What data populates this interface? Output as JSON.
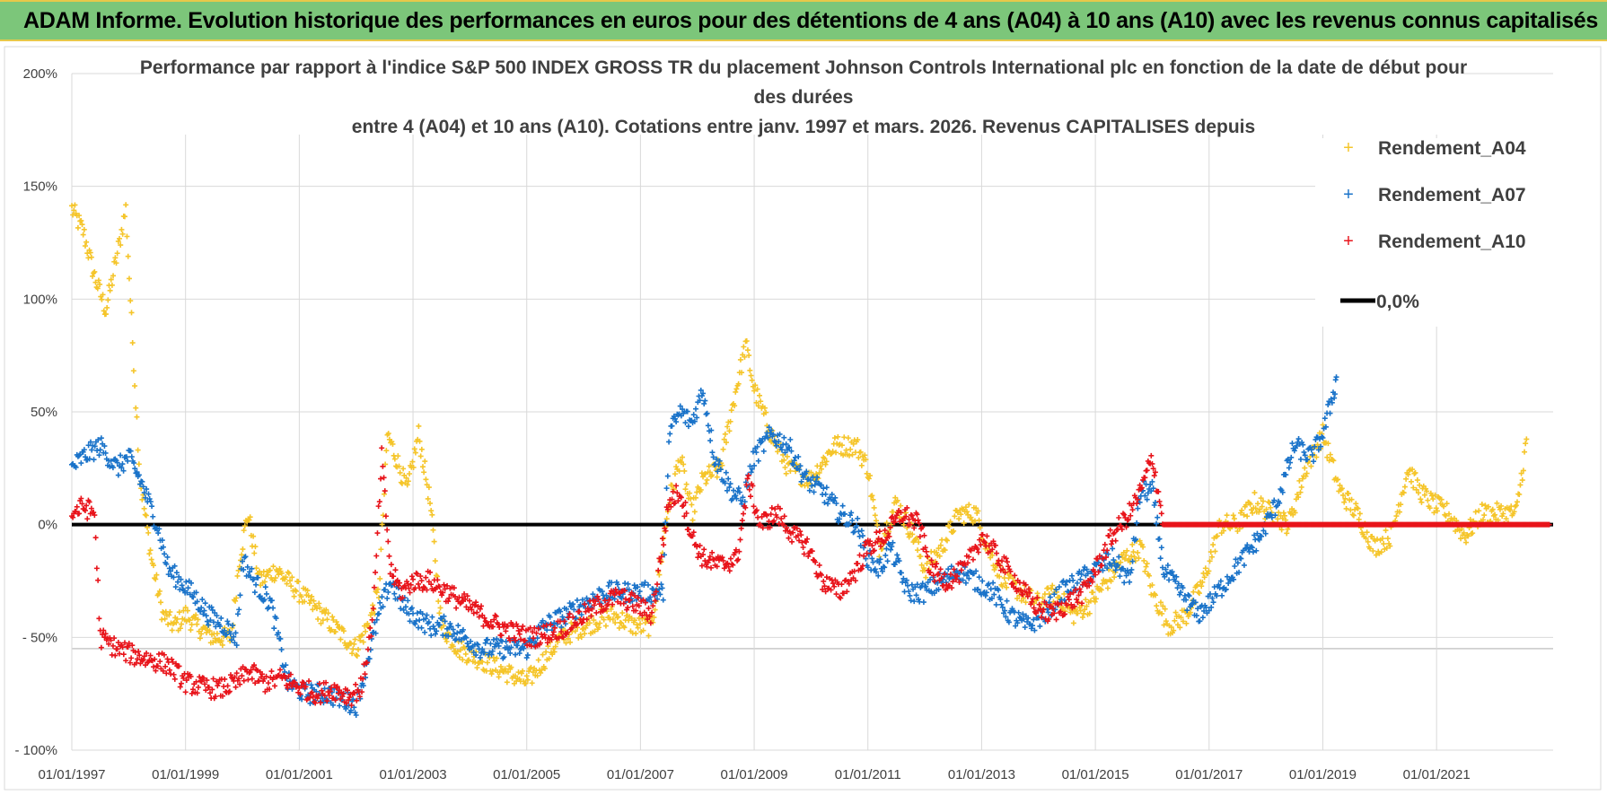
{
  "header": {
    "title": "ADAM Informe. Evolution historique des performances en euros pour des détentions de 4 ans (A04) à 10 ans (A10) avec les revenus connus capitalisés"
  },
  "chart_data": {
    "type": "scatter",
    "title_lines": [
      "Performance par rapport à l'indice S&P 500 INDEX GROSS TR  du placement Johnson Controls International plc en fonction de la date de début pour",
      "des durées",
      "entre 4 (A04) et 10 ans (A10). Cotations entre janv. 1997 et mars. 2026. Revenus CAPITALISES depuis"
    ],
    "xlim": [
      1997.0,
      2023.05
    ],
    "ylim": [
      -100,
      200
    ],
    "x_tick_labels": [
      "01/01/1997",
      "01/01/1999",
      "01/01/2001",
      "01/01/2003",
      "01/01/2005",
      "01/01/2007",
      "01/01/2009",
      "01/01/2011",
      "01/01/2013",
      "01/01/2015",
      "01/01/2017",
      "01/01/2019",
      "01/01/2021"
    ],
    "x_tick_values": [
      1997,
      1999,
      2001,
      2003,
      2005,
      2007,
      2009,
      2011,
      2013,
      2015,
      2017,
      2019,
      2021
    ],
    "y_tick_labels": [
      "- 100%",
      "- 50%",
      "0%",
      "50%",
      "100%",
      "150%",
      "200%"
    ],
    "y_tick_values": [
      -100,
      -50,
      0,
      50,
      100,
      150,
      200
    ],
    "reference_line": {
      "name": "0,0%",
      "value": 0,
      "color": "#000000"
    },
    "series": [
      {
        "name": "Rendement_A04",
        "color": "#f5c52a",
        "points": [
          [
            1997.0,
            140
          ],
          [
            1997.2,
            130
          ],
          [
            1997.4,
            110
          ],
          [
            1997.6,
            95
          ],
          [
            1997.8,
            120
          ],
          [
            1997.95,
            140
          ],
          [
            1998.05,
            90
          ],
          [
            1998.2,
            20
          ],
          [
            1998.4,
            -15
          ],
          [
            1998.6,
            -40
          ],
          [
            1998.8,
            -45
          ],
          [
            1999.0,
            -40
          ],
          [
            1999.2,
            -45
          ],
          [
            1999.5,
            -50
          ],
          [
            1999.8,
            -50
          ],
          [
            1999.95,
            -15
          ],
          [
            2000.1,
            5
          ],
          [
            2000.3,
            -25
          ],
          [
            2000.6,
            -20
          ],
          [
            2001.0,
            -30
          ],
          [
            2001.4,
            -40
          ],
          [
            2001.8,
            -50
          ],
          [
            2002.0,
            -55
          ],
          [
            2002.2,
            -45
          ],
          [
            2002.4,
            -30
          ],
          [
            2002.55,
            40
          ],
          [
            2002.7,
            30
          ],
          [
            2002.9,
            15
          ],
          [
            2003.1,
            40
          ],
          [
            2003.3,
            10
          ],
          [
            2003.5,
            -45
          ],
          [
            2003.8,
            -55
          ],
          [
            2004.2,
            -60
          ],
          [
            2004.6,
            -65
          ],
          [
            2005.0,
            -70
          ],
          [
            2005.3,
            -60
          ],
          [
            2005.6,
            -50
          ],
          [
            2006.0,
            -45
          ],
          [
            2006.5,
            -40
          ],
          [
            2006.9,
            -45
          ],
          [
            2007.2,
            -45
          ],
          [
            2007.5,
            10
          ],
          [
            2007.7,
            30
          ],
          [
            2007.9,
            5
          ],
          [
            2008.1,
            20
          ],
          [
            2008.4,
            25
          ],
          [
            2008.6,
            50
          ],
          [
            2008.85,
            80
          ],
          [
            2009.0,
            60
          ],
          [
            2009.3,
            40
          ],
          [
            2009.6,
            25
          ],
          [
            2010.0,
            20
          ],
          [
            2010.4,
            35
          ],
          [
            2010.8,
            35
          ],
          [
            2011.0,
            25
          ],
          [
            2011.2,
            -10
          ],
          [
            2011.5,
            10
          ],
          [
            2011.8,
            -5
          ],
          [
            2012.0,
            -20
          ],
          [
            2012.3,
            -10
          ],
          [
            2012.6,
            5
          ],
          [
            2012.9,
            5
          ],
          [
            2013.1,
            -10
          ],
          [
            2013.4,
            -25
          ],
          [
            2013.7,
            -30
          ],
          [
            2014.0,
            -35
          ],
          [
            2014.3,
            -30
          ],
          [
            2014.6,
            -40
          ],
          [
            2014.9,
            -35
          ],
          [
            2015.2,
            -25
          ],
          [
            2015.5,
            -15
          ],
          [
            2015.8,
            -10
          ],
          [
            2016.0,
            -30
          ],
          [
            2016.3,
            -45
          ],
          [
            2016.6,
            -40
          ],
          [
            2016.9,
            -25
          ],
          [
            2017.2,
            0
          ],
          [
            2017.5,
            0
          ],
          [
            2017.8,
            10
          ],
          [
            2018.1,
            5
          ],
          [
            2018.4,
            0
          ],
          [
            2018.7,
            25
          ],
          [
            2019.0,
            40
          ],
          [
            2019.3,
            15
          ],
          [
            2019.6,
            5
          ],
          [
            2019.9,
            -10
          ],
          [
            2020.2,
            -5
          ],
          [
            2020.5,
            25
          ],
          [
            2020.7,
            15
          ],
          [
            2020.9,
            10
          ],
          [
            2021.2,
            5
          ],
          [
            2021.5,
            -5
          ],
          [
            2021.8,
            5
          ],
          [
            2022.1,
            5
          ],
          [
            2022.4,
            5
          ],
          [
            2022.6,
            40
          ]
        ]
      },
      {
        "name": "Rendement_A07",
        "color": "#1a73c9",
        "points": [
          [
            1997.0,
            25
          ],
          [
            1997.2,
            30
          ],
          [
            1997.5,
            35
          ],
          [
            1997.8,
            25
          ],
          [
            1998.0,
            30
          ],
          [
            1998.2,
            20
          ],
          [
            1998.5,
            0
          ],
          [
            1998.7,
            -20
          ],
          [
            1998.9,
            -25
          ],
          [
            1999.1,
            -30
          ],
          [
            1999.4,
            -40
          ],
          [
            1999.7,
            -45
          ],
          [
            1999.9,
            -50
          ],
          [
            2000.0,
            -15
          ],
          [
            2000.2,
            -25
          ],
          [
            2000.5,
            -35
          ],
          [
            2000.8,
            -70
          ],
          [
            2001.1,
            -75
          ],
          [
            2001.5,
            -75
          ],
          [
            2001.8,
            -78
          ],
          [
            2002.0,
            -80
          ],
          [
            2002.2,
            -60
          ],
          [
            2002.4,
            -40
          ],
          [
            2002.6,
            -25
          ],
          [
            2002.8,
            -35
          ],
          [
            2003.0,
            -40
          ],
          [
            2003.3,
            -45
          ],
          [
            2003.6,
            -45
          ],
          [
            2003.9,
            -50
          ],
          [
            2004.2,
            -55
          ],
          [
            2004.6,
            -55
          ],
          [
            2005.0,
            -55
          ],
          [
            2005.3,
            -45
          ],
          [
            2005.7,
            -40
          ],
          [
            2006.0,
            -35
          ],
          [
            2006.4,
            -30
          ],
          [
            2006.8,
            -30
          ],
          [
            2007.1,
            -30
          ],
          [
            2007.4,
            -30
          ],
          [
            2007.5,
            40
          ],
          [
            2007.7,
            50
          ],
          [
            2007.9,
            45
          ],
          [
            2008.1,
            60
          ],
          [
            2008.3,
            30
          ],
          [
            2008.6,
            15
          ],
          [
            2008.8,
            10
          ],
          [
            2009.0,
            30
          ],
          [
            2009.3,
            40
          ],
          [
            2009.6,
            35
          ],
          [
            2009.9,
            20
          ],
          [
            2010.2,
            15
          ],
          [
            2010.5,
            5
          ],
          [
            2010.8,
            0
          ],
          [
            2011.0,
            -15
          ],
          [
            2011.2,
            -20
          ],
          [
            2011.4,
            -10
          ],
          [
            2011.7,
            -30
          ],
          [
            2012.0,
            -30
          ],
          [
            2012.3,
            -25
          ],
          [
            2012.6,
            -20
          ],
          [
            2012.9,
            -25
          ],
          [
            2013.2,
            -30
          ],
          [
            2013.5,
            -40
          ],
          [
            2013.8,
            -45
          ],
          [
            2014.1,
            -40
          ],
          [
            2014.4,
            -30
          ],
          [
            2014.7,
            -25
          ],
          [
            2015.0,
            -20
          ],
          [
            2015.3,
            -15
          ],
          [
            2015.6,
            -25
          ],
          [
            2015.8,
            15
          ],
          [
            2016.0,
            15
          ],
          [
            2016.2,
            -20
          ],
          [
            2016.5,
            -30
          ],
          [
            2016.8,
            -40
          ],
          [
            2017.0,
            -35
          ],
          [
            2017.3,
            -25
          ],
          [
            2017.6,
            -15
          ],
          [
            2017.9,
            -5
          ],
          [
            2018.2,
            10
          ],
          [
            2018.5,
            35
          ],
          [
            2018.8,
            30
          ],
          [
            2019.0,
            40
          ],
          [
            2019.2,
            60
          ],
          [
            2019.25,
            65
          ]
        ]
      },
      {
        "name": "Rendement_A10",
        "color": "#e8141b",
        "points": [
          [
            1997.0,
            5
          ],
          [
            1997.2,
            8
          ],
          [
            1997.4,
            5
          ],
          [
            1997.5,
            -50
          ],
          [
            1997.8,
            -55
          ],
          [
            1998.1,
            -58
          ],
          [
            1998.4,
            -60
          ],
          [
            1998.7,
            -62
          ],
          [
            1999.0,
            -70
          ],
          [
            1999.3,
            -72
          ],
          [
            1999.6,
            -73
          ],
          [
            1999.9,
            -70
          ],
          [
            2000.1,
            -65
          ],
          [
            2000.4,
            -70
          ],
          [
            2000.7,
            -68
          ],
          [
            2001.0,
            -72
          ],
          [
            2001.3,
            -75
          ],
          [
            2001.6,
            -73
          ],
          [
            2001.9,
            -76
          ],
          [
            2002.1,
            -72
          ],
          [
            2002.3,
            -40
          ],
          [
            2002.45,
            30
          ],
          [
            2002.6,
            -20
          ],
          [
            2002.8,
            -30
          ],
          [
            2003.0,
            -25
          ],
          [
            2003.3,
            -25
          ],
          [
            2003.6,
            -30
          ],
          [
            2003.9,
            -35
          ],
          [
            2004.2,
            -40
          ],
          [
            2004.5,
            -45
          ],
          [
            2004.8,
            -48
          ],
          [
            2005.1,
            -50
          ],
          [
            2005.4,
            -48
          ],
          [
            2005.7,
            -45
          ],
          [
            2006.0,
            -40
          ],
          [
            2006.3,
            -35
          ],
          [
            2006.6,
            -32
          ],
          [
            2006.9,
            -35
          ],
          [
            2007.2,
            -40
          ],
          [
            2007.5,
            10
          ],
          [
            2007.7,
            15
          ],
          [
            2007.9,
            -5
          ],
          [
            2008.1,
            -15
          ],
          [
            2008.4,
            -18
          ],
          [
            2008.7,
            -15
          ],
          [
            2008.9,
            20
          ],
          [
            2009.1,
            0
          ],
          [
            2009.4,
            5
          ],
          [
            2009.7,
            -5
          ],
          [
            2009.95,
            -10
          ],
          [
            2010.2,
            -25
          ],
          [
            2010.5,
            -30
          ],
          [
            2010.8,
            -20
          ],
          [
            2011.0,
            -10
          ],
          [
            2011.3,
            -5
          ],
          [
            2011.6,
            5
          ],
          [
            2011.9,
            0
          ],
          [
            2012.1,
            -20
          ],
          [
            2012.4,
            -25
          ],
          [
            2012.7,
            -20
          ],
          [
            2013.0,
            -5
          ],
          [
            2013.3,
            -15
          ],
          [
            2013.6,
            -25
          ],
          [
            2013.9,
            -35
          ],
          [
            2014.2,
            -40
          ],
          [
            2014.5,
            -35
          ],
          [
            2014.8,
            -30
          ],
          [
            2015.0,
            -20
          ],
          [
            2015.3,
            -5
          ],
          [
            2015.6,
            5
          ],
          [
            2015.8,
            15
          ],
          [
            2016.0,
            30
          ],
          [
            2016.2,
            0
          ],
          [
            2016.5,
            0
          ],
          [
            2017.0,
            0
          ],
          [
            2018.0,
            0
          ],
          [
            2019.0,
            0
          ],
          [
            2020.0,
            0
          ],
          [
            2021.0,
            0
          ],
          [
            2022.0,
            0
          ],
          [
            2023.0,
            0
          ]
        ]
      }
    ]
  }
}
